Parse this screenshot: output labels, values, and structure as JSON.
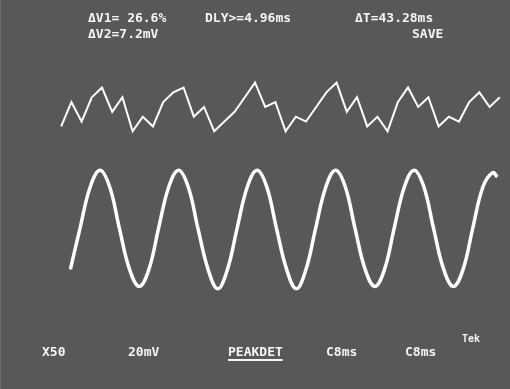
{
  "chart_data": {
    "type": "line",
    "annotations": [
      "ΔV1= 26.6%",
      "ΔV2=7.2mV",
      "DLY>=4.96ms",
      "ΔT=43.28ms",
      "SAVE",
      "X50",
      "20mV",
      "PEAKDET",
      "C8ms",
      "C8ms",
      "Tek"
    ],
    "xlim": [
      0,
      10
    ],
    "ylim": [
      -4,
      4
    ],
    "grid": false,
    "tick_labels": false,
    "series": [
      {
        "color": "#ffffff",
        "x": [
          1.2,
          1.4,
          1.6,
          1.8,
          2.0,
          2.2,
          2.4,
          2.6,
          2.8,
          3.0,
          3.2,
          3.4,
          3.6,
          3.8,
          4.0,
          4.2,
          4.4,
          4.6,
          4.8,
          5.0,
          5.2,
          5.4,
          5.6,
          5.8,
          6.0,
          6.2,
          6.4,
          6.6,
          6.8,
          7.0,
          7.2,
          7.4,
          7.6,
          7.8,
          8.0,
          8.2,
          8.4,
          8.6,
          8.8,
          9.0,
          9.2,
          9.4,
          9.6,
          9.8
        ],
        "values": [
          1.4,
          1.9,
          1.5,
          2.0,
          2.2,
          1.7,
          2.0,
          1.3,
          1.6,
          1.4,
          1.9,
          2.1,
          2.2,
          1.6,
          1.8,
          1.3,
          1.5,
          1.7,
          2.0,
          2.3,
          1.8,
          1.9,
          1.3,
          1.6,
          1.5,
          1.8,
          2.1,
          2.3,
          1.7,
          2.0,
          1.4,
          1.6,
          1.3,
          1.9,
          2.2,
          1.8,
          2.0,
          1.4,
          1.6,
          1.5,
          1.9,
          2.1,
          1.8,
          2.0
        ]
      },
      {
        "color": "#ffffff",
        "x": [
          1.38,
          1.57,
          1.77,
          1.96,
          2.15,
          2.34,
          2.54,
          2.73,
          2.92,
          3.11,
          3.31,
          3.5,
          3.69,
          3.88,
          4.08,
          4.27,
          4.46,
          4.65,
          4.85,
          5.04,
          5.23,
          5.42,
          5.62,
          5.81,
          6.0,
          6.19,
          6.39,
          6.58,
          6.77,
          6.96,
          7.16,
          7.35,
          7.54,
          7.73,
          7.93,
          8.12,
          8.31,
          8.5,
          8.7,
          8.89,
          9.08,
          9.27,
          9.47,
          9.66,
          9.75
        ],
        "values": [
          -1.54,
          -0.69,
          0.16,
          0.5,
          0.16,
          -0.69,
          -1.54,
          -1.89,
          -1.54,
          -0.69,
          0.16,
          0.5,
          0.16,
          -0.69,
          -1.54,
          -1.94,
          -1.54,
          -0.69,
          0.16,
          0.5,
          0.16,
          -0.69,
          -1.54,
          -1.94,
          -1.54,
          -0.69,
          0.16,
          0.5,
          0.16,
          -0.69,
          -1.54,
          -1.89,
          -1.54,
          -0.69,
          0.16,
          0.5,
          0.16,
          -0.69,
          -1.54,
          -1.89,
          -1.54,
          -0.69,
          0.16,
          0.45,
          0.36
        ]
      }
    ]
  }
}
